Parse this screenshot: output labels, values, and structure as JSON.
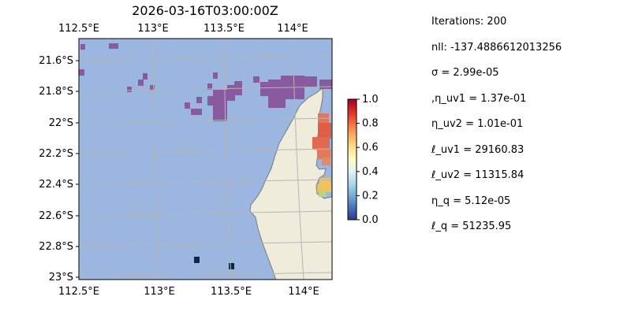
{
  "title": "2026-03-16T03:00:00Z",
  "map": {
    "lon_labels": [
      "112.5°E",
      "113°E",
      "113.5°E",
      "114°E"
    ],
    "lat_labels": [
      "21.6°S",
      "21.8°S",
      "22°S",
      "22.2°S",
      "22.4°S",
      "22.6°S",
      "22.8°S",
      "23°S"
    ],
    "colors": {
      "ocean": "#9bb7e0",
      "land": "#efecdc",
      "coast": "#7a7a7a",
      "grid": "#b5b5b5"
    }
  },
  "colorbar": {
    "ticks": [
      "0.0",
      "0.2",
      "0.4",
      "0.6",
      "0.8",
      "1.0"
    ],
    "colormap": "RdYlBu_r"
  },
  "stats": [
    "Iterations: 200",
    "nll: -137.4886612013256",
    "σ = 2.99e-05",
    ",η_uv1 = 1.37e-01",
    "η_uv2 = 1.01e-01",
    "ℓ_uv1 = 29160.83",
    "ℓ_uv2 = 11315.84",
    "η_q = 5.12e-05",
    "ℓ_q = 51235.95"
  ]
}
